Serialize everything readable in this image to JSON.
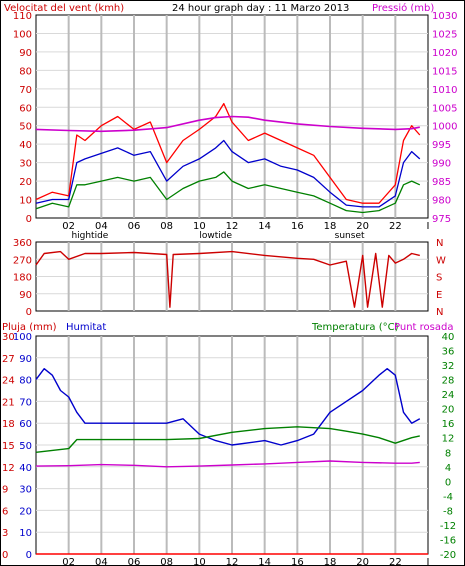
{
  "header": {
    "wind_label": "Velocitat del vent (kmh)",
    "title": "24 hour graph day : 11 Marzo 2013",
    "pressure_label": "Pressió (mb)"
  },
  "lower_header": {
    "rain_label": "Pluja (mm)",
    "humidity_label": "Humitat",
    "temp_label": "Temperatura (°C)",
    "dew_label": "Punt rosada"
  },
  "colors": {
    "wind_gust": "#ff0000",
    "wind_avg": "#0000cc",
    "wind_low": "#008000",
    "pressure": "#cc00cc",
    "direction": "#cc0000",
    "humidity": "#0000cc",
    "temperature": "#008000",
    "dewpoint": "#cc00cc",
    "rain": "#ff0000"
  },
  "chart_data": [
    {
      "type": "line",
      "panel": "wind-pressure",
      "x_ticks": [
        "02",
        "04",
        "06",
        "08",
        "10",
        "12",
        "14",
        "16",
        "18",
        "20",
        "22",
        "I"
      ],
      "x_annotations": [
        "hightide",
        "lowtide",
        "sunset"
      ],
      "y_left_ticks": [
        0,
        10,
        20,
        30,
        40,
        50,
        60,
        70,
        80,
        90,
        100,
        110
      ],
      "y_left_range": [
        0,
        110
      ],
      "y_right_ticks": [
        975,
        980,
        985,
        990,
        995,
        1000,
        1005,
        1010,
        1015,
        1020,
        1025,
        1030
      ],
      "y_right_range": [
        975,
        1030
      ],
      "x_range_hours": [
        0,
        24
      ],
      "series": [
        {
          "name": "Velocitat del vent (kmh)",
          "color": "#ff0000",
          "axis": "left",
          "x": [
            0,
            1,
            2,
            2.5,
            3,
            4,
            5,
            6,
            7,
            8,
            9,
            10,
            11,
            11.5,
            12,
            13,
            14,
            15,
            16,
            17,
            18,
            19,
            20,
            21,
            22,
            22.5,
            23,
            23.5
          ],
          "values": [
            10,
            14,
            12,
            45,
            42,
            50,
            55,
            48,
            52,
            30,
            42,
            48,
            55,
            62,
            52,
            42,
            46,
            42,
            38,
            34,
            22,
            10,
            8,
            8,
            18,
            42,
            50,
            45
          ]
        },
        {
          "name": "wind-average",
          "color": "#0000cc",
          "axis": "left",
          "x": [
            0,
            1,
            2,
            2.5,
            3,
            4,
            5,
            6,
            7,
            8,
            9,
            10,
            11,
            11.5,
            12,
            13,
            14,
            15,
            16,
            17,
            18,
            19,
            20,
            21,
            22,
            22.5,
            23,
            23.5
          ],
          "values": [
            8,
            10,
            10,
            30,
            32,
            35,
            38,
            34,
            36,
            20,
            28,
            32,
            38,
            42,
            36,
            30,
            32,
            28,
            26,
            22,
            14,
            7,
            6,
            6,
            12,
            30,
            36,
            32
          ]
        },
        {
          "name": "wind-low",
          "color": "#008000",
          "axis": "left",
          "x": [
            0,
            1,
            2,
            2.5,
            3,
            4,
            5,
            6,
            7,
            8,
            9,
            10,
            11,
            11.5,
            12,
            13,
            14,
            15,
            16,
            17,
            18,
            19,
            20,
            21,
            22,
            22.5,
            23,
            23.5
          ],
          "values": [
            5,
            8,
            6,
            18,
            18,
            20,
            22,
            20,
            22,
            10,
            16,
            20,
            22,
            25,
            20,
            16,
            18,
            16,
            14,
            12,
            8,
            4,
            3,
            4,
            8,
            18,
            20,
            18
          ]
        },
        {
          "name": "Pressió (mb)",
          "color": "#cc00cc",
          "axis": "right",
          "x": [
            0,
            2,
            4,
            6,
            8,
            10,
            11,
            12,
            13,
            14,
            16,
            18,
            20,
            22,
            23,
            23.5
          ],
          "values": [
            999,
            998.7,
            998.5,
            998.8,
            999.5,
            1001.5,
            1002.2,
            1002.5,
            1002.3,
            1001.5,
            1000.5,
            999.8,
            999.3,
            999,
            999.2,
            999.6
          ]
        }
      ]
    },
    {
      "type": "line",
      "panel": "wind-direction",
      "y_left_ticks": [
        0,
        90,
        180,
        270,
        360
      ],
      "y_left_range": [
        0,
        360
      ],
      "y_right_labels": [
        "N",
        "W",
        "S",
        "E",
        "N"
      ],
      "series": [
        {
          "name": "wind-direction",
          "color": "#cc0000",
          "x": [
            0,
            0.5,
            1.5,
            2,
            3,
            4,
            6,
            8,
            8.2,
            8.4,
            10,
            12,
            14,
            16,
            17,
            18,
            18.5,
            19,
            19.5,
            20,
            20.3,
            20.8,
            21.2,
            21.6,
            22,
            22.5,
            23,
            23.5
          ],
          "values": [
            240,
            300,
            310,
            270,
            300,
            300,
            305,
            295,
            20,
            295,
            300,
            310,
            290,
            275,
            270,
            240,
            250,
            260,
            20,
            290,
            20,
            300,
            20,
            290,
            250,
            270,
            300,
            290
          ]
        }
      ]
    },
    {
      "type": "line",
      "panel": "humidity-temperature",
      "x_ticks": [
        "02",
        "04",
        "06",
        "08",
        "10",
        "12",
        "14",
        "16",
        "18",
        "20",
        "22",
        "I"
      ],
      "x_annotations": [
        "hightide",
        "lowtide",
        "sunset"
      ],
      "y_rain_ticks": [
        0,
        3,
        6,
        9,
        12,
        15,
        18,
        21,
        24,
        27,
        30
      ],
      "y_humidity_ticks": [
        0,
        10,
        20,
        30,
        40,
        50,
        60,
        70,
        80,
        90,
        100
      ],
      "y_temp_ticks": [
        -20,
        -16,
        -12,
        -8,
        -4,
        0,
        4,
        8,
        12,
        16,
        20,
        24,
        28,
        32,
        36,
        40
      ],
      "y_temp_range": [
        -20,
        40
      ],
      "y_humidity_range": [
        0,
        100
      ],
      "series": [
        {
          "name": "Humitat",
          "color": "#0000cc",
          "axis": "humidity",
          "x": [
            0,
            0.5,
            1,
            1.5,
            2,
            2.5,
            3,
            4,
            6,
            8,
            9,
            10,
            11,
            12,
            14,
            15,
            16,
            17,
            18,
            19,
            20,
            21,
            21.5,
            22,
            22.5,
            23,
            23.5
          ],
          "values": [
            80,
            85,
            82,
            75,
            72,
            65,
            60,
            60,
            60,
            60,
            62,
            55,
            52,
            50,
            52,
            50,
            52,
            55,
            65,
            70,
            75,
            82,
            85,
            82,
            65,
            60,
            62
          ]
        },
        {
          "name": "Temperatura (°C)",
          "color": "#008000",
          "axis": "temp",
          "x": [
            0,
            1,
            2,
            2.5,
            4,
            6,
            8,
            10,
            12,
            14,
            16,
            18,
            19,
            20,
            21,
            22,
            23,
            23.5
          ],
          "values": [
            8,
            8.5,
            9,
            11.5,
            11.5,
            11.5,
            11.5,
            11.8,
            13.5,
            14.5,
            15,
            14.5,
            13.8,
            13,
            12,
            10.5,
            12,
            12.5
          ]
        },
        {
          "name": "Punt rosada",
          "color": "#cc00cc",
          "axis": "temp",
          "x": [
            0,
            2,
            4,
            6,
            8,
            10,
            12,
            14,
            16,
            18,
            20,
            22,
            23,
            23.5
          ],
          "values": [
            4.2,
            4.3,
            4.6,
            4.4,
            4.0,
            4.2,
            4.5,
            4.8,
            5.2,
            5.6,
            5.2,
            5.0,
            5.0,
            5.2
          ]
        },
        {
          "name": "Pluja (mm)",
          "color": "#ff0000",
          "axis": "rain",
          "x": [
            0,
            24
          ],
          "values": [
            0,
            0
          ]
        }
      ]
    }
  ]
}
